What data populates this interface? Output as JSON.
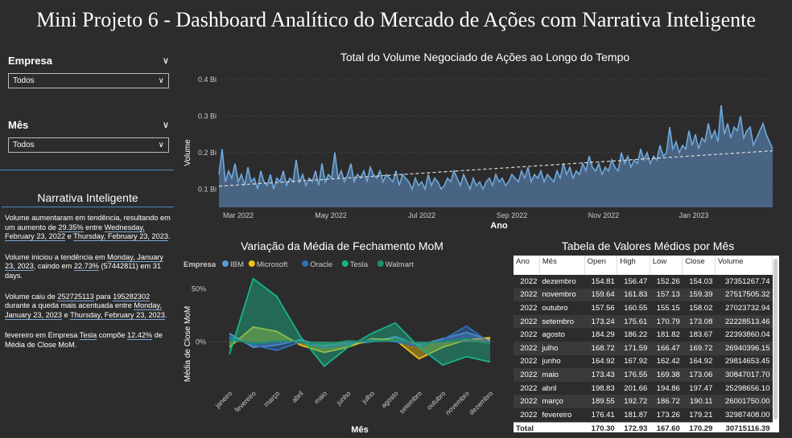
{
  "title": "Mini Projeto 6 - Dashboard Analítico do Mercado de Ações com Narrativa Inteligente",
  "slicers": [
    {
      "label": "Empresa",
      "value": "Todos"
    },
    {
      "label": "Mês",
      "value": "Todos"
    }
  ],
  "narrative": {
    "title": "Narrativa Inteligente",
    "p1": {
      "a": "Volume aumentaram em tendência, resultando em um aumento de ",
      "pct": "29.35%",
      "b": " entre ",
      "d1": "Wednesday, February 23, 2022",
      "c": " e ",
      "d2": "Thursday, February 23, 2023",
      "e": "."
    },
    "p2": {
      "a": "Volume iniciou a tendência em ",
      "d1": "Monday, January 23, 2023",
      "b": ", caindo em ",
      "pct": "22.73%",
      "c": " (57442811) em 31 days."
    },
    "p3": {
      "a": "Volume caiu de ",
      "v1": "252725113",
      "b": " para ",
      "v2": "195282302",
      "c": " durante a queda mais acentuada entre ",
      "d1": "Monday, January 23, 2023",
      "d": " e ",
      "d2": "Thursday, February 23, 2023",
      "e": "."
    },
    "p4": {
      "a": "fevereiro em Empresa ",
      "emp": "Tesla",
      "b": " compõe ",
      "pct": "12.42%",
      "c": " de Média de Close MoM."
    }
  },
  "colors": {
    "ibm": "#5b9bd5",
    "microsoft": "#f2c314",
    "oracle": "#2f6fb7",
    "tesla": "#19b38a",
    "walmart": "#1f8f6a",
    "volume": "#6fa8dc"
  },
  "volume_chart": {
    "title": "Total do Volume Negociado de Ações ao Longo do Tempo",
    "ylabel": "Volume",
    "xlabel": "Ano",
    "yticks": [
      "0.1 Bi",
      "0.2 Bi",
      "0.3 Bi",
      "0.4 Bi"
    ],
    "xticks": [
      "Mar 2022",
      "May 2022",
      "Jul 2022",
      "Sep 2022",
      "Nov 2022",
      "Jan 2023"
    ]
  },
  "mom_chart": {
    "title": "Variação da Média de Fechamento MoM",
    "legend_title": "Empresa",
    "ylabel": "Média de Close MoM",
    "xlabel": "Mês",
    "yticks": [
      "0%",
      "50%"
    ],
    "months": [
      "janeiro",
      "fevereiro",
      "março",
      "abril",
      "maio",
      "junho",
      "julho",
      "agosto",
      "setembro",
      "outubro",
      "novembro",
      "dezembro"
    ]
  },
  "chart_data": [
    {
      "type": "area",
      "title": "Total do Volume Negociado de Ações ao Longo do Tempo",
      "xlabel": "Ano",
      "ylabel": "Volume",
      "ylim": [
        0.05,
        0.42
      ],
      "y_unit": "Bi",
      "x_range": [
        "2022-02-23",
        "2023-02-23"
      ],
      "trendline": {
        "start": 0.108,
        "end": 0.205
      },
      "series": [
        {
          "values": [
            0.14,
            0.21,
            0.12,
            0.15,
            0.13,
            0.17,
            0.12,
            0.14,
            0.11,
            0.16,
            0.12,
            0.13,
            0.1,
            0.15,
            0.12,
            0.11,
            0.14,
            0.1,
            0.13,
            0.12,
            0.15,
            0.11,
            0.13,
            0.12,
            0.18,
            0.12,
            0.14,
            0.11,
            0.13,
            0.12,
            0.15,
            0.11,
            0.17,
            0.12,
            0.14,
            0.13,
            0.2,
            0.13,
            0.15,
            0.12,
            0.14,
            0.17,
            0.12,
            0.14,
            0.13,
            0.15,
            0.12,
            0.16,
            0.14,
            0.13,
            0.15,
            0.12,
            0.14,
            0.13,
            0.12,
            0.15,
            0.11,
            0.14,
            0.13,
            0.12,
            0.1,
            0.13,
            0.11,
            0.12,
            0.1,
            0.14,
            0.11,
            0.13,
            0.12,
            0.1,
            0.11,
            0.13,
            0.12,
            0.15,
            0.13,
            0.11,
            0.14,
            0.12,
            0.1,
            0.13,
            0.11,
            0.12,
            0.1,
            0.12,
            0.13,
            0.11,
            0.14,
            0.12,
            0.13,
            0.11,
            0.12,
            0.14,
            0.13,
            0.12,
            0.15,
            0.13,
            0.16,
            0.12,
            0.14,
            0.13,
            0.15,
            0.12,
            0.14,
            0.13,
            0.12,
            0.15,
            0.13,
            0.17,
            0.14,
            0.16,
            0.13,
            0.15,
            0.14,
            0.17,
            0.15,
            0.19,
            0.16,
            0.15,
            0.17,
            0.14,
            0.16,
            0.15,
            0.18,
            0.16,
            0.15,
            0.2,
            0.17,
            0.19,
            0.16,
            0.18,
            0.17,
            0.21,
            0.18,
            0.2,
            0.17,
            0.19,
            0.18,
            0.22,
            0.19,
            0.2,
            0.27,
            0.21,
            0.23,
            0.2,
            0.22,
            0.21,
            0.26,
            0.22,
            0.25,
            0.21,
            0.24,
            0.23,
            0.28,
            0.24,
            0.26,
            0.23,
            0.33,
            0.25,
            0.28,
            0.24,
            0.27,
            0.26,
            0.3,
            0.24,
            0.26,
            0.27,
            0.22,
            0.24,
            0.26,
            0.28,
            0.25,
            0.23,
            0.21
          ]
        }
      ]
    },
    {
      "type": "area",
      "title": "Variação da Média de Fechamento MoM",
      "xlabel": "Mês",
      "ylabel": "Média de Close MoM",
      "ylim": [
        -40,
        65
      ],
      "categories": [
        "janeiro",
        "fevereiro",
        "março",
        "abril",
        "maio",
        "junho",
        "julho",
        "agosto",
        "setembro",
        "outubro",
        "novembro",
        "dezembro"
      ],
      "series": [
        {
          "name": "IBM",
          "values": [
            8,
            -5,
            -3,
            2,
            -4,
            -2,
            0,
            5,
            -3,
            3,
            9,
            2
          ]
        },
        {
          "name": "Microsoft",
          "values": [
            -5,
            14,
            10,
            -3,
            -10,
            -5,
            3,
            2,
            -16,
            -5,
            2,
            4
          ]
        },
        {
          "name": "Oracle",
          "values": [
            5,
            -3,
            -8,
            0,
            -5,
            -2,
            2,
            0,
            -4,
            2,
            15,
            -1
          ]
        },
        {
          "name": "Tesla",
          "values": [
            -12,
            60,
            43,
            5,
            -23,
            -5,
            8,
            18,
            -5,
            -22,
            -14,
            -19
          ]
        },
        {
          "name": "Walmart",
          "values": [
            3,
            -2,
            1,
            0,
            -2,
            1,
            0,
            2,
            -1,
            0,
            3,
            -2
          ]
        }
      ]
    }
  ],
  "table": {
    "title": "Tabela de Valores Médios por Mês",
    "columns": [
      "Ano",
      "Mês",
      "Open",
      "High",
      "Low",
      "Close",
      "Volume"
    ],
    "rows": [
      [
        "2022",
        "dezembro",
        "154.81",
        "156.47",
        "152.26",
        "154.03",
        "37351267.74"
      ],
      [
        "2022",
        "novembro",
        "159.64",
        "161.83",
        "157.13",
        "159.39",
        "27517505.32"
      ],
      [
        "2022",
        "outubro",
        "157.56",
        "160.55",
        "155.15",
        "158.02",
        "27023732.94"
      ],
      [
        "2022",
        "setembro",
        "173.24",
        "175.61",
        "170.79",
        "173.08",
        "22228513.46"
      ],
      [
        "2022",
        "agosto",
        "184.29",
        "186.22",
        "181.82",
        "183.67",
        "22393860.04"
      ],
      [
        "2022",
        "julho",
        "168.72",
        "171.59",
        "166.47",
        "169.72",
        "26940396.15"
      ],
      [
        "2022",
        "junho",
        "164.92",
        "167.92",
        "162.42",
        "164.92",
        "29814653.45"
      ],
      [
        "2022",
        "maio",
        "173.43",
        "176.55",
        "169.38",
        "173.06",
        "30847017.70"
      ],
      [
        "2022",
        "abril",
        "198.83",
        "201.66",
        "194.86",
        "197.47",
        "25298656.10"
      ],
      [
        "2022",
        "março",
        "189.55",
        "192.72",
        "186.72",
        "190.11",
        "26001750.00"
      ],
      [
        "2022",
        "fevereiro",
        "176.41",
        "181.87",
        "173.26",
        "179.21",
        "32987408.00"
      ]
    ],
    "total": [
      "Total",
      "",
      "170.30",
      "172.93",
      "167.60",
      "170.29",
      "30715116.39"
    ]
  }
}
